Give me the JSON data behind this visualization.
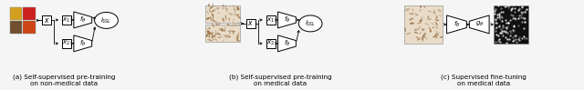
{
  "background": "#f5f5f5",
  "caption_a": "(a) Self-supervised pre-training\non non-medical data",
  "caption_b": "(b) Self-supervised pre-training\non medical data",
  "caption_c": "(c) Supervised fine-tuning\non medical data",
  "caption_fontsize": 5.2,
  "fig_width": 6.4,
  "fig_height": 0.99,
  "lw": 0.7
}
